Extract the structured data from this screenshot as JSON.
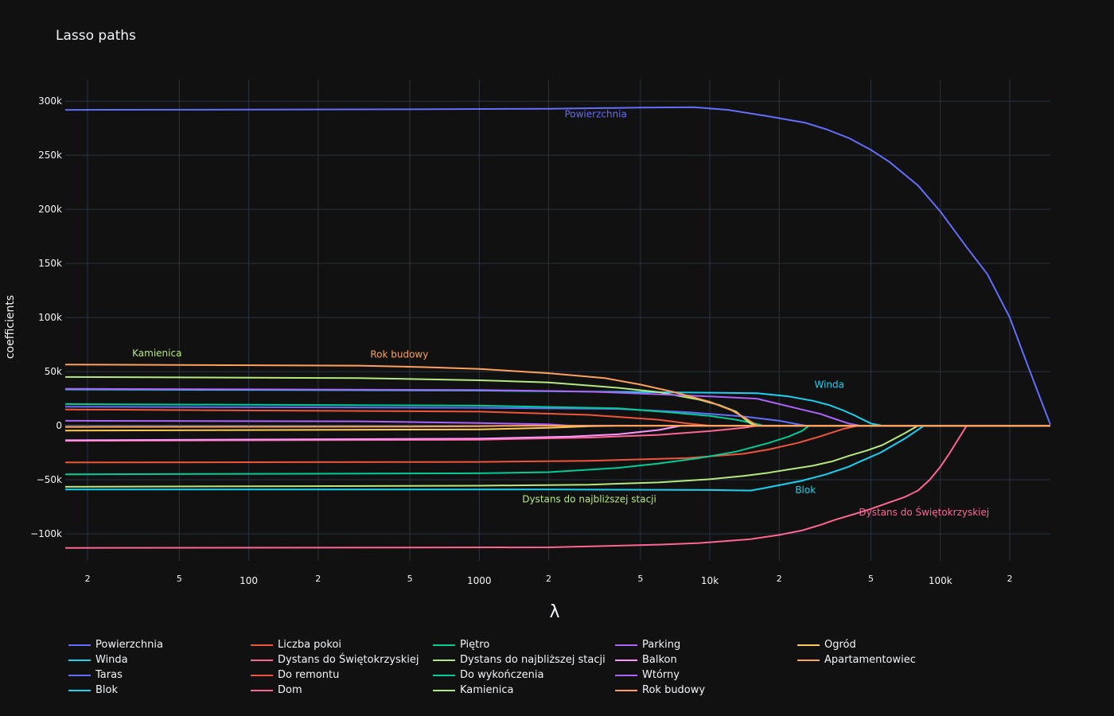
{
  "chart_data": {
    "type": "line",
    "title": "Lasso paths",
    "xlabel": "λ",
    "ylabel": "coefficients",
    "x_scale": "log",
    "xlim": [
      16,
      300000
    ],
    "ylim": [
      -125000,
      320000
    ],
    "y_ticks": [
      {
        "value": 300000,
        "label": "300k"
      },
      {
        "value": 250000,
        "label": "250k"
      },
      {
        "value": 200000,
        "label": "200k"
      },
      {
        "value": 150000,
        "label": "150k"
      },
      {
        "value": 100000,
        "label": "100k"
      },
      {
        "value": 50000,
        "label": "50k"
      },
      {
        "value": 0,
        "label": "0"
      },
      {
        "value": -50000,
        "label": "−50k"
      },
      {
        "value": -100000,
        "label": "−100k"
      }
    ],
    "x_major_ticks": [
      {
        "value": 100,
        "label": "100"
      },
      {
        "value": 1000,
        "label": "1000"
      },
      {
        "value": 10000,
        "label": "10k"
      },
      {
        "value": 100000,
        "label": "100k"
      }
    ],
    "x_minor_ticks": [
      {
        "value": 20,
        "label": "2"
      },
      {
        "value": 50,
        "label": "5"
      },
      {
        "value": 200,
        "label": "2"
      },
      {
        "value": 500,
        "label": "5"
      },
      {
        "value": 2000,
        "label": "2"
      },
      {
        "value": 5000,
        "label": "5"
      },
      {
        "value": 20000,
        "label": "2"
      },
      {
        "value": 50000,
        "label": "5"
      },
      {
        "value": 200000,
        "label": "2"
      }
    ],
    "grid": true,
    "legend_position": "bottom",
    "series": [
      {
        "name": "Powierzchnia",
        "color": "#636efa",
        "points": [
          [
            16,
            292000
          ],
          [
            500,
            292500
          ],
          [
            2000,
            293000
          ],
          [
            5000,
            294000
          ],
          [
            8500,
            294500
          ],
          [
            12000,
            292000
          ],
          [
            18000,
            286000
          ],
          [
            26000,
            280000
          ],
          [
            32000,
            274000
          ],
          [
            40000,
            266000
          ],
          [
            50000,
            255000
          ],
          [
            60000,
            244000
          ],
          [
            80000,
            222000
          ],
          [
            100000,
            198000
          ],
          [
            130000,
            165000
          ],
          [
            160000,
            140000
          ],
          [
            200000,
            100000
          ],
          [
            240000,
            55000
          ],
          [
            300000,
            1000
          ]
        ]
      },
      {
        "name": "Winda",
        "color": "#19d3f3",
        "points": [
          [
            16,
            33500
          ],
          [
            1000,
            32500
          ],
          [
            3000,
            31500
          ],
          [
            10000,
            30500
          ],
          [
            16000,
            30000
          ],
          [
            22000,
            27000
          ],
          [
            28000,
            23000
          ],
          [
            33000,
            19000
          ],
          [
            38000,
            14000
          ],
          [
            42000,
            10000
          ],
          [
            50000,
            2000
          ],
          [
            56000,
            0
          ],
          [
            300000,
            0
          ]
        ]
      },
      {
        "name": "Taras",
        "color": "#636efa",
        "points": [
          [
            16,
            17500
          ],
          [
            1000,
            16500
          ],
          [
            4000,
            15500
          ],
          [
            8000,
            12500
          ],
          [
            14000,
            8500
          ],
          [
            20000,
            4500
          ],
          [
            26000,
            0
          ],
          [
            300000,
            0
          ]
        ]
      },
      {
        "name": "Blok",
        "color": "#19d3f3",
        "points": [
          [
            16,
            -59000
          ],
          [
            2000,
            -59000
          ],
          [
            10000,
            -59500
          ],
          [
            15000,
            -60000
          ],
          [
            17000,
            -58000
          ],
          [
            25000,
            -51000
          ],
          [
            32000,
            -45000
          ],
          [
            40000,
            -38000
          ],
          [
            45000,
            -33000
          ],
          [
            55000,
            -25000
          ],
          [
            70000,
            -12000
          ],
          [
            85000,
            0
          ],
          [
            300000,
            0
          ]
        ]
      },
      {
        "name": "Liczba pokoi",
        "color": "#ef553b",
        "points": [
          [
            16,
            -34000
          ],
          [
            1000,
            -33500
          ],
          [
            3000,
            -32500
          ],
          [
            8000,
            -30000
          ],
          [
            14000,
            -26000
          ],
          [
            18000,
            -22000
          ],
          [
            24000,
            -16000
          ],
          [
            30000,
            -10000
          ],
          [
            38000,
            -3000
          ],
          [
            44000,
            0
          ],
          [
            300000,
            0
          ]
        ]
      },
      {
        "name": "Dystans do Świętokrzyskiej",
        "color": "#ff6692",
        "points": [
          [
            16,
            -113000
          ],
          [
            2000,
            -112500
          ],
          [
            6000,
            -110000
          ],
          [
            9000,
            -108500
          ],
          [
            15000,
            -105000
          ],
          [
            20000,
            -101000
          ],
          [
            25000,
            -97000
          ],
          [
            30000,
            -92000
          ],
          [
            35000,
            -87000
          ],
          [
            42000,
            -82000
          ],
          [
            50000,
            -77000
          ],
          [
            60000,
            -71000
          ],
          [
            70000,
            -66000
          ],
          [
            80000,
            -60000
          ],
          [
            90000,
            -50000
          ],
          [
            100000,
            -38000
          ],
          [
            110000,
            -25000
          ],
          [
            120000,
            -12000
          ],
          [
            130000,
            0
          ],
          [
            300000,
            0
          ]
        ]
      },
      {
        "name": "Do remontu",
        "color": "#ef553b",
        "points": [
          [
            16,
            15000
          ],
          [
            1000,
            13000
          ],
          [
            3000,
            10000
          ],
          [
            6000,
            5500
          ],
          [
            8000,
            2000
          ],
          [
            10000,
            0
          ],
          [
            300000,
            0
          ]
        ]
      },
      {
        "name": "Dom",
        "color": "#ff6692",
        "points": [
          [
            16,
            -14000
          ],
          [
            1000,
            -13000
          ],
          [
            3000,
            -11000
          ],
          [
            6000,
            -8500
          ],
          [
            10000,
            -5000
          ],
          [
            14000,
            -2000
          ],
          [
            16000,
            0
          ],
          [
            300000,
            0
          ]
        ]
      },
      {
        "name": "Piętro",
        "color": "#00cc96",
        "points": [
          [
            16,
            -45000
          ],
          [
            1000,
            -44000
          ],
          [
            2000,
            -43000
          ],
          [
            4000,
            -39000
          ],
          [
            6000,
            -35000
          ],
          [
            9000,
            -30000
          ],
          [
            13000,
            -24000
          ],
          [
            18000,
            -16000
          ],
          [
            22000,
            -10000
          ],
          [
            25000,
            -5000
          ],
          [
            27000,
            0
          ],
          [
            300000,
            0
          ]
        ]
      },
      {
        "name": "Dystans do najbliższej stacji",
        "color": "#b6e880",
        "points": [
          [
            16,
            -56500
          ],
          [
            1000,
            -55500
          ],
          [
            3000,
            -54500
          ],
          [
            6000,
            -52500
          ],
          [
            10000,
            -49500
          ],
          [
            14000,
            -46500
          ],
          [
            18000,
            -43500
          ],
          [
            22000,
            -40500
          ],
          [
            28000,
            -37000
          ],
          [
            34000,
            -33000
          ],
          [
            40000,
            -28000
          ],
          [
            48000,
            -23000
          ],
          [
            56000,
            -18000
          ],
          [
            62000,
            -13000
          ],
          [
            70000,
            -7000
          ],
          [
            80000,
            0
          ],
          [
            300000,
            0
          ]
        ]
      },
      {
        "name": "Do wykończenia",
        "color": "#00cc96",
        "points": [
          [
            16,
            20000
          ],
          [
            1000,
            18500
          ],
          [
            4000,
            16000
          ],
          [
            7000,
            12000
          ],
          [
            10000,
            9000
          ],
          [
            13000,
            5500
          ],
          [
            16000,
            1500
          ],
          [
            17000,
            0
          ],
          [
            300000,
            0
          ]
        ]
      },
      {
        "name": "Kamienica",
        "color": "#b6e880",
        "points": [
          [
            16,
            45000
          ],
          [
            300,
            44000
          ],
          [
            1000,
            42000
          ],
          [
            2000,
            40000
          ],
          [
            4000,
            35000
          ],
          [
            6000,
            31000
          ],
          [
            9000,
            24000
          ],
          [
            11000,
            19000
          ],
          [
            13000,
            13000
          ],
          [
            14000,
            7000
          ],
          [
            15000,
            2000
          ],
          [
            16000,
            0
          ],
          [
            300000,
            0
          ]
        ]
      },
      {
        "name": "Parking",
        "color": "#ab63fa",
        "points": [
          [
            16,
            4500
          ],
          [
            300,
            4000
          ],
          [
            1000,
            2500
          ],
          [
            2000,
            1200
          ],
          [
            2500,
            0
          ],
          [
            300000,
            0
          ]
        ]
      },
      {
        "name": "Balkon",
        "color": "#ff97ff",
        "points": [
          [
            16,
            -13500
          ],
          [
            1000,
            -12000
          ],
          [
            2500,
            -10000
          ],
          [
            4000,
            -8000
          ],
          [
            6000,
            -4000
          ],
          [
            7500,
            0
          ],
          [
            300000,
            0
          ]
        ]
      },
      {
        "name": "Wtórny",
        "color": "#ab63fa",
        "points": [
          [
            16,
            34000
          ],
          [
            1000,
            33000
          ],
          [
            3000,
            31500
          ],
          [
            6000,
            29000
          ],
          [
            10000,
            27000
          ],
          [
            16000,
            25000
          ],
          [
            20000,
            20000
          ],
          [
            25000,
            15000
          ],
          [
            30000,
            11000
          ],
          [
            34000,
            7000
          ],
          [
            40000,
            2000
          ],
          [
            45000,
            0
          ],
          [
            300000,
            0
          ]
        ]
      },
      {
        "name": "Rok budowy",
        "color": "#ffa15a",
        "points": [
          [
            16,
            56500
          ],
          [
            300,
            55500
          ],
          [
            600,
            54000
          ],
          [
            1000,
            52500
          ],
          [
            2000,
            48500
          ],
          [
            3500,
            44000
          ],
          [
            5000,
            38000
          ],
          [
            7000,
            31000
          ],
          [
            10000,
            22000
          ],
          [
            12500,
            14000
          ],
          [
            14500,
            6000
          ],
          [
            16000,
            0
          ],
          [
            300000,
            0
          ]
        ]
      },
      {
        "name": "Ogród",
        "color": "#fecb52",
        "points": [
          [
            16,
            -4500
          ],
          [
            1000,
            -3500
          ],
          [
            2000,
            -2000
          ],
          [
            3000,
            -500
          ],
          [
            4000,
            0
          ],
          [
            300000,
            0
          ]
        ]
      },
      {
        "name": "Apartamentowiec",
        "color": "#ffa15a",
        "points": [
          [
            16,
            -1200
          ],
          [
            500,
            -900
          ],
          [
            1000,
            -500
          ],
          [
            1500,
            0
          ],
          [
            300000,
            0
          ]
        ]
      }
    ],
    "annotations": [
      {
        "text": "Powierzchnia",
        "x": 3200,
        "y": 285000,
        "color": "#636efa"
      },
      {
        "text": "Kamienica",
        "x": 40,
        "y": 64000,
        "color": "#b6e880"
      },
      {
        "text": "Rok budowy",
        "x": 450,
        "y": 63000,
        "color": "#ffa15a"
      },
      {
        "text": "Winda",
        "x": 33000,
        "y": 35000,
        "color": "#19d3f3"
      },
      {
        "text": "Dystans do najbliższej stacji",
        "x": 3000,
        "y": -71000,
        "color": "#b6e880"
      },
      {
        "text": "Blok",
        "x": 26000,
        "y": -62500,
        "color": "#19d3f3"
      },
      {
        "text": "Dystans do Świętokrzyskiej",
        "x": 85000,
        "y": -83000,
        "color": "#ff6692"
      }
    ]
  }
}
